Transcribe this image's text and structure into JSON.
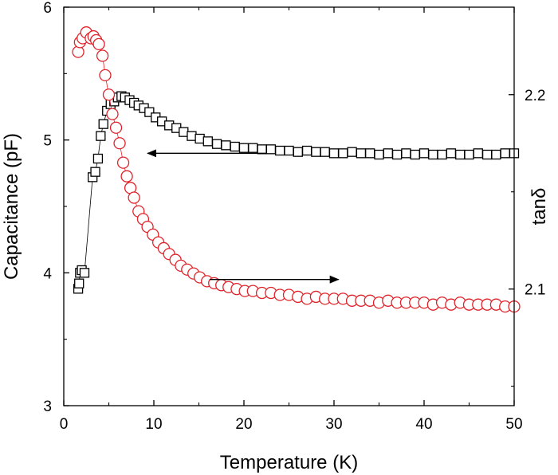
{
  "chart_data": {
    "type": "scatter",
    "xlabel": "Temperature (K)",
    "ylabel": "Capacitance (pF)",
    "y2label": "tanδ",
    "xlim": [
      0,
      50
    ],
    "ylim": [
      3,
      6
    ],
    "y2lim": [
      2.04,
      2.245
    ],
    "x_ticks": [
      "0",
      "10",
      "20",
      "30",
      "40",
      "50"
    ],
    "y_ticks": [
      "3",
      "4",
      "5",
      "6"
    ],
    "y2_ticks": [
      "2.1",
      "2.2"
    ],
    "colors": {
      "capacitance": "#000000",
      "tan_delta": "#e0232a",
      "axes": "#000000"
    },
    "series": [
      {
        "axis": "left",
        "marker": "square",
        "points": [
          [
            1.6,
            3.88
          ],
          [
            1.7,
            3.92
          ],
          [
            1.8,
            4.0
          ],
          [
            2.0,
            4.02
          ],
          [
            2.3,
            4.0
          ],
          [
            3.2,
            4.72
          ],
          [
            3.5,
            4.76
          ],
          [
            3.8,
            4.86
          ],
          [
            4.1,
            5.03
          ],
          [
            4.4,
            5.12
          ],
          [
            4.8,
            5.22
          ],
          [
            5.2,
            5.27
          ],
          [
            5.6,
            5.29
          ],
          [
            6.0,
            5.32
          ],
          [
            6.4,
            5.33
          ],
          [
            6.8,
            5.32
          ],
          [
            7.3,
            5.3
          ],
          [
            7.8,
            5.28
          ],
          [
            8.3,
            5.26
          ],
          [
            8.9,
            5.24
          ],
          [
            9.5,
            5.21
          ],
          [
            10.2,
            5.17
          ],
          [
            10.9,
            5.14
          ],
          [
            11.7,
            5.11
          ],
          [
            12.5,
            5.09
          ],
          [
            13.3,
            5.06
          ],
          [
            14.2,
            5.03
          ],
          [
            15.1,
            5.01
          ],
          [
            16.0,
            4.99
          ],
          [
            17.0,
            4.97
          ],
          [
            18.0,
            4.96
          ],
          [
            19.0,
            4.95
          ],
          [
            20.0,
            4.94
          ],
          [
            21.0,
            4.94
          ],
          [
            22.0,
            4.93
          ],
          [
            23.0,
            4.93
          ],
          [
            24.0,
            4.92
          ],
          [
            25.0,
            4.92
          ],
          [
            26.0,
            4.91
          ],
          [
            27.0,
            4.92
          ],
          [
            28.0,
            4.91
          ],
          [
            29.0,
            4.91
          ],
          [
            30.0,
            4.9
          ],
          [
            31.0,
            4.9
          ],
          [
            32.0,
            4.91
          ],
          [
            33.0,
            4.9
          ],
          [
            34.0,
            4.9
          ],
          [
            35.0,
            4.89
          ],
          [
            36.0,
            4.9
          ],
          [
            37.0,
            4.89
          ],
          [
            38.0,
            4.9
          ],
          [
            39.0,
            4.89
          ],
          [
            40.0,
            4.9
          ],
          [
            41.0,
            4.89
          ],
          [
            42.0,
            4.89
          ],
          [
            43.0,
            4.9
          ],
          [
            44.0,
            4.89
          ],
          [
            45.0,
            4.89
          ],
          [
            46.0,
            4.9
          ],
          [
            47.0,
            4.89
          ],
          [
            48.0,
            4.89
          ],
          [
            49.0,
            4.9
          ],
          [
            50.0,
            4.9
          ]
        ]
      },
      {
        "axis": "right",
        "marker": "circle",
        "points": [
          [
            1.6,
            2.222
          ],
          [
            1.8,
            2.227
          ],
          [
            2.1,
            2.229
          ],
          [
            2.5,
            2.232
          ],
          [
            3.0,
            2.229
          ],
          [
            3.3,
            2.23
          ],
          [
            3.6,
            2.228
          ],
          [
            3.9,
            2.226
          ],
          [
            4.3,
            2.22
          ],
          [
            4.6,
            2.21
          ],
          [
            5.0,
            2.2
          ],
          [
            5.4,
            2.19
          ],
          [
            5.8,
            2.183
          ],
          [
            6.2,
            2.175
          ],
          [
            6.6,
            2.165
          ],
          [
            7.0,
            2.158
          ],
          [
            7.4,
            2.152
          ],
          [
            7.8,
            2.147
          ],
          [
            8.3,
            2.14
          ],
          [
            8.8,
            2.136
          ],
          [
            9.3,
            2.132
          ],
          [
            9.9,
            2.128
          ],
          [
            10.5,
            2.124
          ],
          [
            11.1,
            2.121
          ],
          [
            11.7,
            2.118
          ],
          [
            12.4,
            2.115
          ],
          [
            13.0,
            2.112
          ],
          [
            13.7,
            2.11
          ],
          [
            14.4,
            2.108
          ],
          [
            15.1,
            2.106
          ],
          [
            15.9,
            2.104
          ],
          [
            16.7,
            2.103
          ],
          [
            17.5,
            2.102
          ],
          [
            18.3,
            2.101
          ],
          [
            19.2,
            2.1
          ],
          [
            20.1,
            2.099
          ],
          [
            21.0,
            2.099
          ],
          [
            22.0,
            2.098
          ],
          [
            23.0,
            2.098
          ],
          [
            24.0,
            2.097
          ],
          [
            25.0,
            2.097
          ],
          [
            26.0,
            2.096
          ],
          [
            27.0,
            2.095
          ],
          [
            28.0,
            2.096
          ],
          [
            29.0,
            2.095
          ],
          [
            30.0,
            2.095
          ],
          [
            31.0,
            2.095
          ],
          [
            32.0,
            2.094
          ],
          [
            33.0,
            2.094
          ],
          [
            34.0,
            2.094
          ],
          [
            35.0,
            2.093
          ],
          [
            36.0,
            2.094
          ],
          [
            37.0,
            2.093
          ],
          [
            38.0,
            2.093
          ],
          [
            39.0,
            2.093
          ],
          [
            40.0,
            2.093
          ],
          [
            41.0,
            2.092
          ],
          [
            42.0,
            2.093
          ],
          [
            43.0,
            2.092
          ],
          [
            44.0,
            2.093
          ],
          [
            45.0,
            2.092
          ],
          [
            46.0,
            2.092
          ],
          [
            47.0,
            2.092
          ],
          [
            48.0,
            2.092
          ],
          [
            49.0,
            2.091
          ],
          [
            50.0,
            2.091
          ]
        ]
      }
    ],
    "annotations": [
      {
        "type": "arrow",
        "direction": "left",
        "from": [
          22.5,
          4.9
        ],
        "to": [
          9.3,
          4.9
        ]
      },
      {
        "type": "arrow",
        "direction": "right",
        "from": [
          16.2,
          3.95
        ],
        "to": [
          30.5,
          3.95
        ]
      }
    ]
  }
}
